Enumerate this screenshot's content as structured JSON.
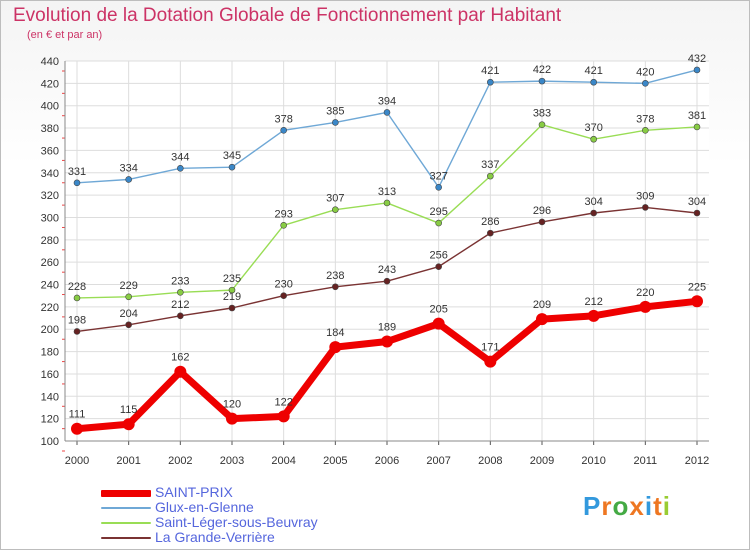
{
  "chart_data": {
    "type": "line",
    "title": "Evolution de la Dotation Globale de Fonctionnement par Habitant",
    "subtitle": "(en € et par an)",
    "x": [
      "2000",
      "2001",
      "2002",
      "2003",
      "2004",
      "2005",
      "2006",
      "2007",
      "2008",
      "2009",
      "2010",
      "2011",
      "2012"
    ],
    "ylim": [
      100,
      440
    ],
    "yticks": [
      100,
      120,
      140,
      160,
      180,
      200,
      220,
      240,
      260,
      280,
      300,
      320,
      340,
      360,
      380,
      400,
      420,
      440
    ],
    "grid": true,
    "legend_position": "bottom-left",
    "series": [
      {
        "name": "SAINT-PRIX",
        "color": "#ee0000",
        "values": [
          111,
          115,
          162,
          120,
          122,
          184,
          189,
          205,
          171,
          209,
          212,
          220,
          225
        ]
      },
      {
        "name": "Glux-en-Glenne",
        "color": "#6fa8d6",
        "values": [
          331,
          334,
          344,
          345,
          378,
          385,
          394,
          327,
          421,
          422,
          421,
          420,
          432
        ]
      },
      {
        "name": "Saint-Léger-sous-Beuvray",
        "color": "#99dd55",
        "values": [
          228,
          229,
          233,
          235,
          293,
          307,
          313,
          295,
          337,
          383,
          370,
          378,
          381
        ]
      },
      {
        "name": "La Grande-Verrière",
        "color": "#7a3333",
        "values": [
          198,
          204,
          212,
          219,
          230,
          238,
          243,
          256,
          286,
          296,
          304,
          309,
          304
        ]
      }
    ]
  },
  "brand": {
    "letters": [
      "P",
      "r",
      "o",
      "x",
      "i",
      "t",
      "i"
    ],
    "colors": [
      "#3399dd",
      "#ee7722",
      "#44aa44",
      "#ee7722",
      "#3399dd",
      "#ee7722",
      "#99cc33"
    ]
  }
}
